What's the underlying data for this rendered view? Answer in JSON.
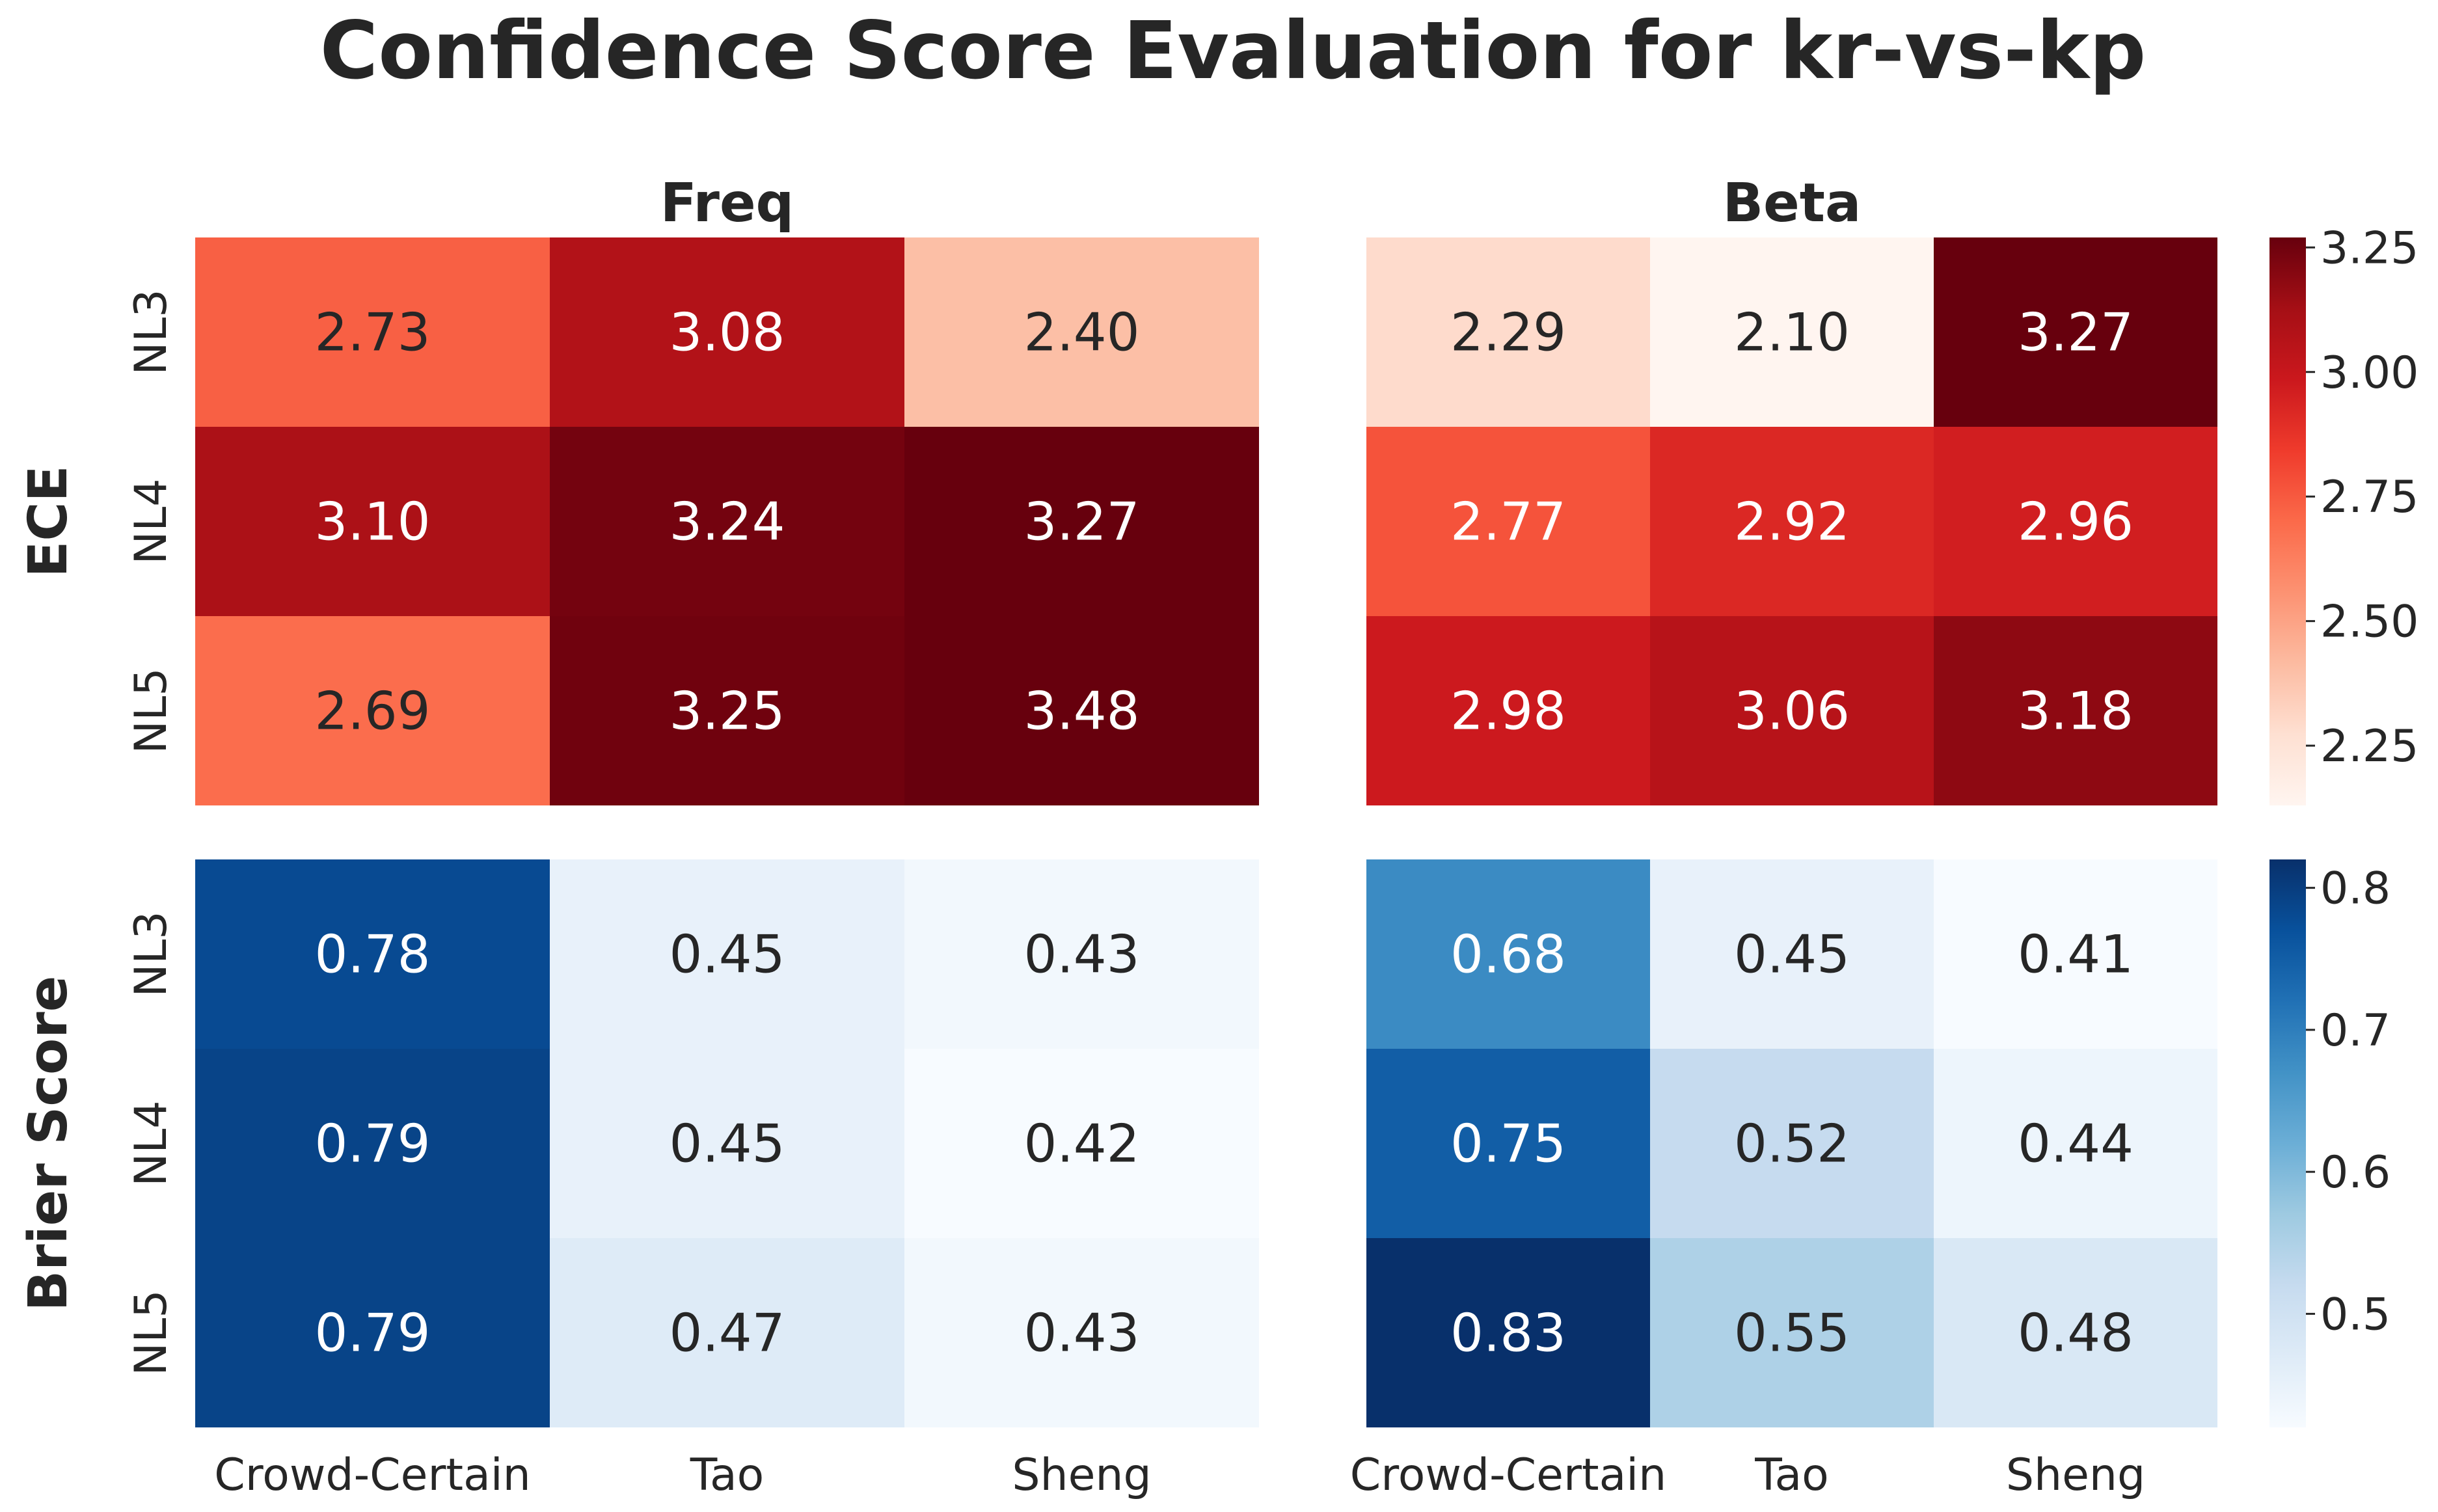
{
  "title": "Confidence Score Evaluation for kr-vs-kp",
  "chart_data": {
    "type": "heatmap",
    "title": "Confidence Score Evaluation for kr-vs-kp",
    "row_labels": [
      "NL3",
      "NL4",
      "NL5"
    ],
    "col_labels": [
      "Crowd-Certain",
      "Tao",
      "Sheng"
    ],
    "panels": [
      {
        "metric": "ECE",
        "method": "Freq",
        "values": [
          [
            2.73,
            3.08,
            2.4
          ],
          [
            3.1,
            3.24,
            3.27
          ],
          [
            2.69,
            3.25,
            3.48
          ]
        ]
      },
      {
        "metric": "ECE",
        "method": "Beta",
        "values": [
          [
            2.29,
            2.1,
            3.27
          ],
          [
            2.77,
            2.92,
            2.96
          ],
          [
            2.98,
            3.06,
            3.18
          ]
        ]
      },
      {
        "metric": "Brier Score",
        "method": "Freq",
        "values": [
          [
            0.78,
            0.45,
            0.43
          ],
          [
            0.79,
            0.45,
            0.42
          ],
          [
            0.79,
            0.47,
            0.43
          ]
        ]
      },
      {
        "metric": "Brier Score",
        "method": "Beta",
        "values": [
          [
            0.68,
            0.45,
            0.41
          ],
          [
            0.75,
            0.52,
            0.44
          ],
          [
            0.83,
            0.55,
            0.48
          ]
        ]
      }
    ],
    "method_titles": [
      "Freq",
      "Beta"
    ],
    "metric_titles": [
      "ECE",
      "Brier Score"
    ],
    "colorbars": [
      {
        "metric": "ECE",
        "colormap": "Reds",
        "vmin": 2.13,
        "vmax": 3.27,
        "ticks": [
          "2.25",
          "2.50",
          "2.75",
          "3.00",
          "3.25"
        ]
      },
      {
        "metric": "Brier Score",
        "colormap": "Blues",
        "vmin": 0.42,
        "vmax": 0.82,
        "ticks": [
          "0.5",
          "0.6",
          "0.7",
          "0.8"
        ]
      }
    ],
    "colors": {
      "reds": [
        "#fff5f0",
        "#fee0d2",
        "#fcbba1",
        "#fc9272",
        "#fb6a4a",
        "#ef3b2c",
        "#cb181d",
        "#a50f15",
        "#67000d"
      ],
      "blues": [
        "#f7fbff",
        "#deebf7",
        "#c6dbef",
        "#9ecae1",
        "#6baed6",
        "#4292c6",
        "#2171b5",
        "#08519c",
        "#08306b"
      ],
      "text_dark": "#262626",
      "text_light": "#ffffff"
    }
  }
}
